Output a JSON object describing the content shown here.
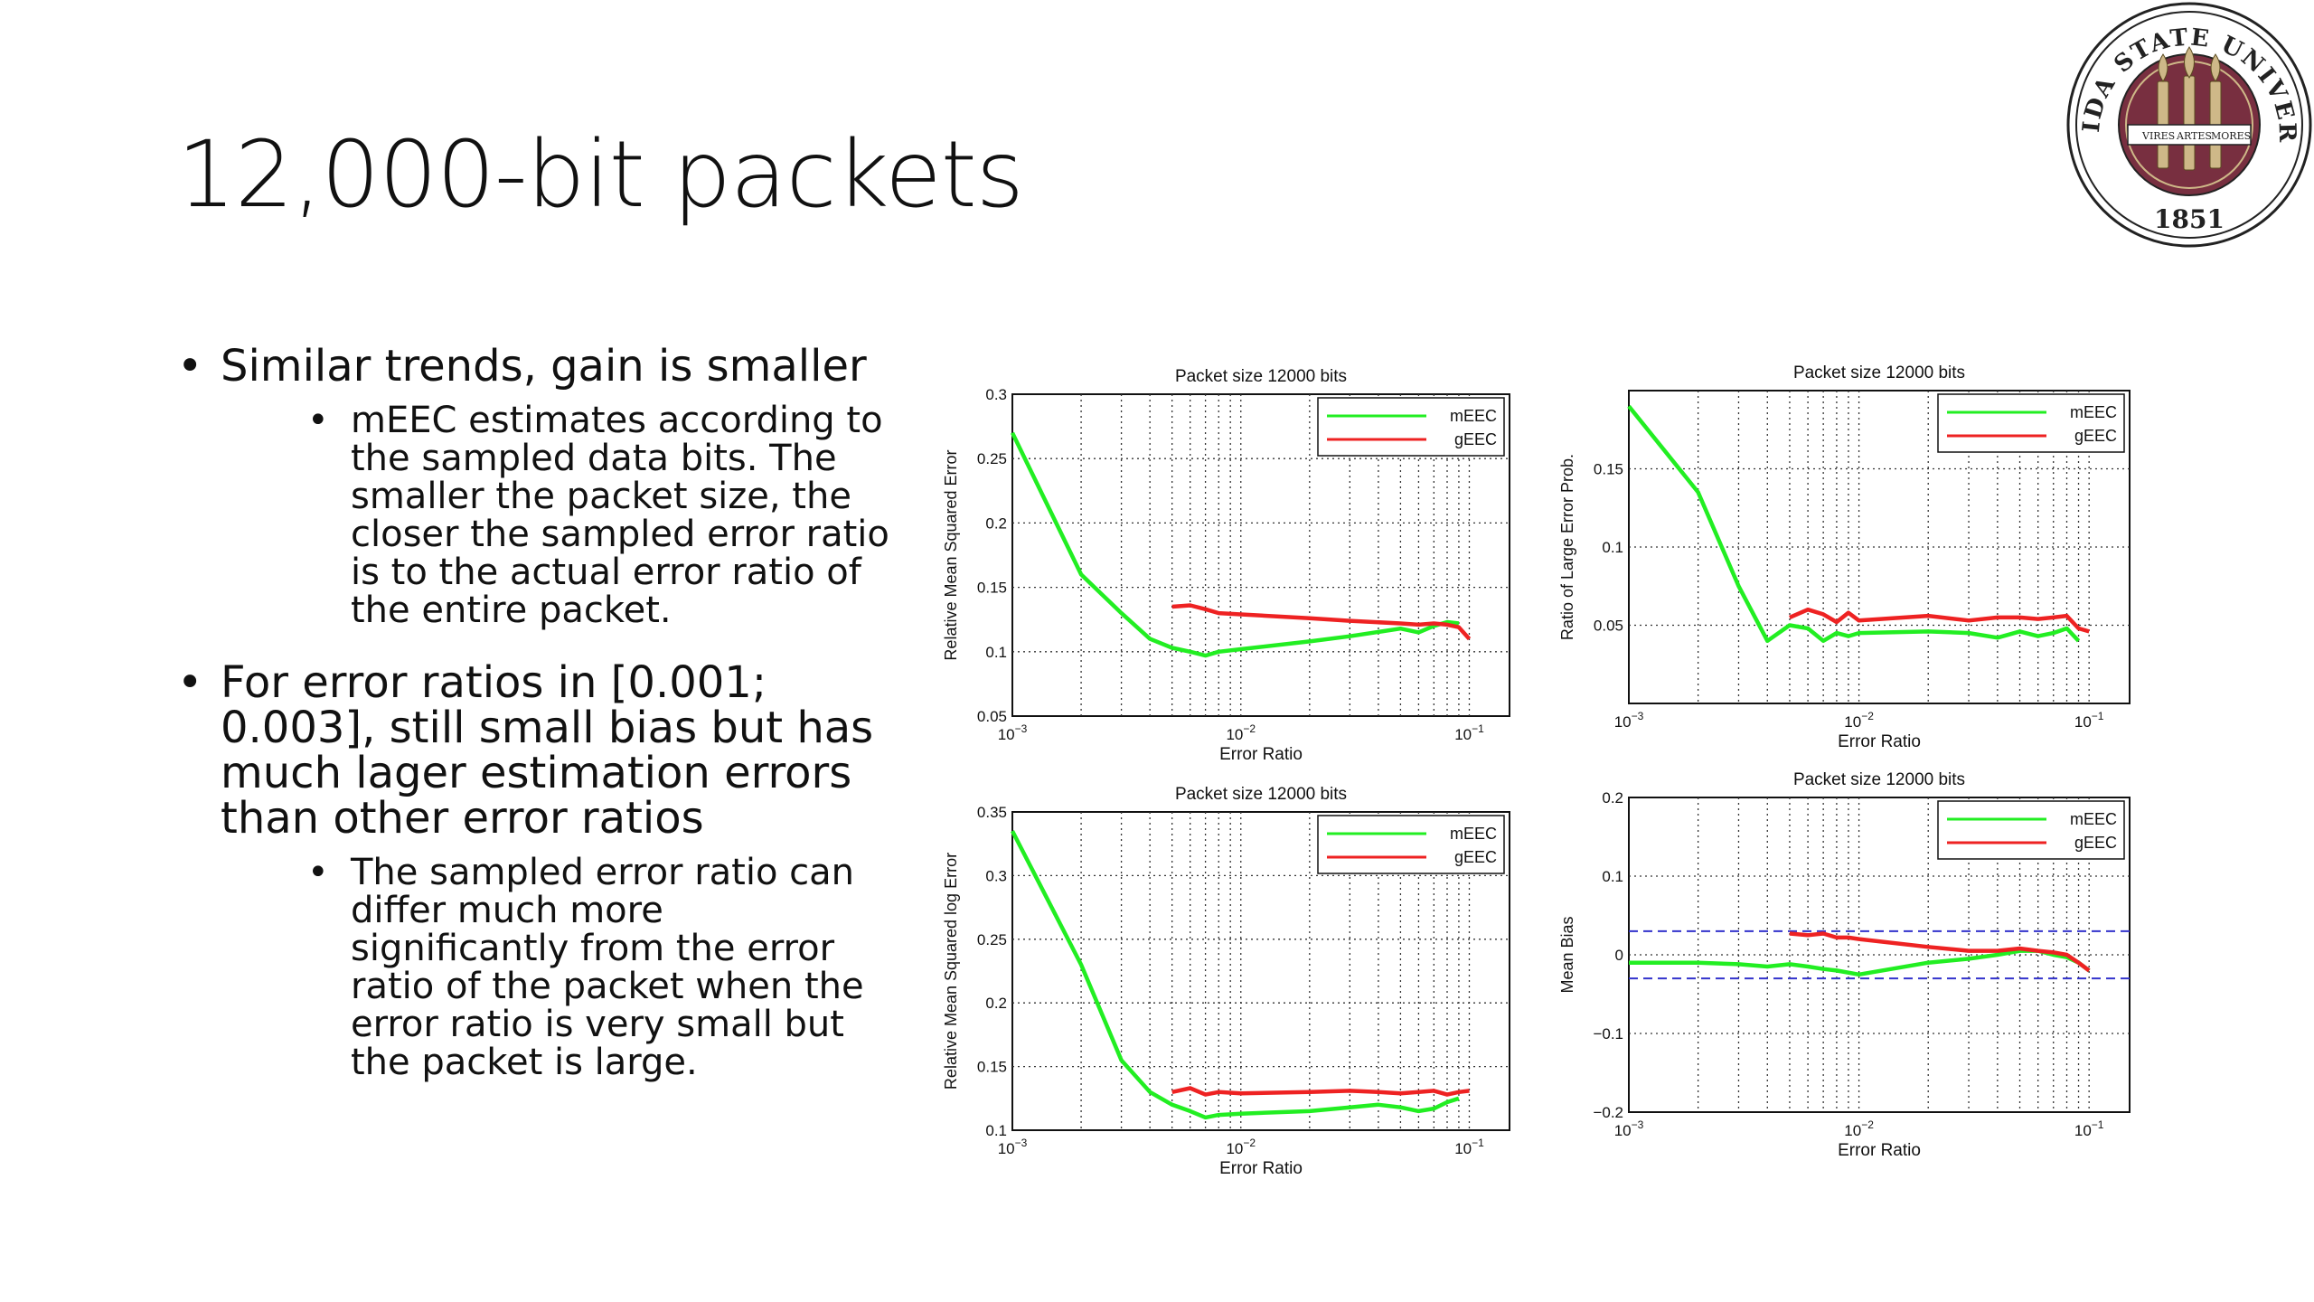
{
  "slide": {
    "title": "12,000-bit packets",
    "logo": {
      "text_top": "FLORIDA STATE UNIVERSITY",
      "year": "1851",
      "mottos": [
        "VIRES",
        "ARTES",
        "MORES"
      ],
      "colors": {
        "garnet": "#782F40",
        "gold": "#CEB888"
      }
    },
    "bullets": [
      {
        "text": "Similar trends, gain is smaller",
        "sub": [
          "mEEC estimates according to the sampled data bits. The smaller the packet size, the closer the sampled error ratio is to the actual error ratio of the entire packet."
        ]
      },
      {
        "text": "For error ratios in [0.001; 0.003], still small bias but has much lager estimation errors than other error ratios",
        "sub": [
          "The sampled error ratio can differ much more significantly from the error ratio of the packet when the error ratio is very small but the packet is large."
        ]
      }
    ]
  },
  "chart_data": [
    {
      "type": "line",
      "title": "Packet size 12000 bits",
      "xlabel": "Error Ratio",
      "ylabel": "Relative Mean Squared Error",
      "xscale": "log",
      "xlim": [
        0.001,
        0.15
      ],
      "ylim": [
        0.05,
        0.3
      ],
      "xticks": [
        "10^-3",
        "10^-2",
        "10^-1"
      ],
      "yticks": [
        "0.05",
        "0.1",
        "0.15",
        "0.2",
        "0.25",
        "0.3"
      ],
      "legend": "top-right",
      "grid": true,
      "series": [
        {
          "name": "mEEC",
          "color": "#22ee22",
          "x": [
            0.001,
            0.002,
            0.003,
            0.004,
            0.005,
            0.006,
            0.007,
            0.008,
            0.01,
            0.02,
            0.03,
            0.05,
            0.06,
            0.07,
            0.08,
            0.09
          ],
          "y": [
            0.27,
            0.16,
            0.13,
            0.11,
            0.103,
            0.1,
            0.097,
            0.1,
            0.102,
            0.108,
            0.112,
            0.118,
            0.115,
            0.12,
            0.123,
            0.122
          ]
        },
        {
          "name": "gEEC",
          "color": "#ee2222",
          "x": [
            0.005,
            0.006,
            0.007,
            0.008,
            0.01,
            0.02,
            0.03,
            0.05,
            0.06,
            0.07,
            0.08,
            0.09,
            0.1
          ],
          "y": [
            0.135,
            0.136,
            0.133,
            0.13,
            0.129,
            0.126,
            0.124,
            0.122,
            0.121,
            0.122,
            0.121,
            0.119,
            0.11
          ]
        }
      ]
    },
    {
      "type": "line",
      "title": "Packet size 12000 bits",
      "xlabel": "Error Ratio",
      "ylabel": "Ratio of Large Error Prob.",
      "xscale": "log",
      "xlim": [
        0.001,
        0.15
      ],
      "ylim": [
        0.0,
        0.2
      ],
      "xticks": [
        "10^-3",
        "10^-2",
        "10^-1"
      ],
      "yticks": [
        "0.05",
        "0.1",
        "0.15"
      ],
      "legend": "top-right",
      "grid": true,
      "series": [
        {
          "name": "mEEC",
          "color": "#22ee22",
          "x": [
            0.001,
            0.002,
            0.003,
            0.004,
            0.005,
            0.006,
            0.007,
            0.008,
            0.009,
            0.01,
            0.02,
            0.03,
            0.04,
            0.05,
            0.06,
            0.07,
            0.08,
            0.09
          ],
          "y": [
            0.19,
            0.135,
            0.075,
            0.04,
            0.05,
            0.048,
            0.04,
            0.045,
            0.043,
            0.045,
            0.046,
            0.045,
            0.042,
            0.046,
            0.043,
            0.045,
            0.048,
            0.04
          ]
        },
        {
          "name": "gEEC",
          "color": "#ee2222",
          "x": [
            0.005,
            0.006,
            0.007,
            0.008,
            0.009,
            0.01,
            0.02,
            0.03,
            0.04,
            0.05,
            0.06,
            0.07,
            0.08,
            0.09,
            0.1
          ],
          "y": [
            0.055,
            0.06,
            0.057,
            0.052,
            0.058,
            0.053,
            0.056,
            0.053,
            0.055,
            0.055,
            0.054,
            0.055,
            0.056,
            0.048,
            0.046
          ]
        }
      ]
    },
    {
      "type": "line",
      "title": "Packet size 12000 bits",
      "xlabel": "Error Ratio",
      "ylabel": "Relative Mean Squared log Error",
      "xscale": "log",
      "xlim": [
        0.001,
        0.15
      ],
      "ylim": [
        0.1,
        0.35
      ],
      "xticks": [
        "10^-3",
        "10^-2",
        "10^-1"
      ],
      "yticks": [
        "0.1",
        "0.15",
        "0.2",
        "0.25",
        "0.3",
        "0.35"
      ],
      "legend": "top-right",
      "grid": true,
      "series": [
        {
          "name": "mEEC",
          "color": "#22ee22",
          "x": [
            0.001,
            0.002,
            0.003,
            0.004,
            0.005,
            0.006,
            0.007,
            0.008,
            0.01,
            0.02,
            0.03,
            0.04,
            0.05,
            0.06,
            0.07,
            0.08,
            0.09
          ],
          "y": [
            0.335,
            0.23,
            0.155,
            0.13,
            0.12,
            0.115,
            0.11,
            0.112,
            0.113,
            0.115,
            0.118,
            0.12,
            0.118,
            0.115,
            0.117,
            0.122,
            0.125
          ]
        },
        {
          "name": "gEEC",
          "color": "#ee2222",
          "x": [
            0.005,
            0.006,
            0.007,
            0.008,
            0.01,
            0.02,
            0.03,
            0.04,
            0.05,
            0.06,
            0.07,
            0.08,
            0.09,
            0.1
          ],
          "y": [
            0.13,
            0.133,
            0.128,
            0.13,
            0.129,
            0.13,
            0.131,
            0.13,
            0.129,
            0.13,
            0.131,
            0.128,
            0.13,
            0.131
          ]
        }
      ]
    },
    {
      "type": "line",
      "title": "Packet size 12000 bits",
      "xlabel": "Error Ratio",
      "ylabel": "Mean Bias",
      "xscale": "log",
      "xlim": [
        0.001,
        0.15
      ],
      "ylim": [
        -0.2,
        0.2
      ],
      "xticks": [
        "10^-3",
        "10^-2",
        "10^-1"
      ],
      "yticks": [
        "-0.2",
        "-0.1",
        "0",
        "0.1",
        "0.2"
      ],
      "reference_lines": [
        0.03,
        -0.03
      ],
      "legend": "top-right",
      "grid": true,
      "series": [
        {
          "name": "mEEC",
          "color": "#22ee22",
          "x": [
            0.001,
            0.002,
            0.003,
            0.004,
            0.005,
            0.006,
            0.007,
            0.008,
            0.01,
            0.02,
            0.03,
            0.04,
            0.05,
            0.06,
            0.07,
            0.08,
            0.09,
            0.1
          ],
          "y": [
            -0.01,
            -0.01,
            -0.012,
            -0.015,
            -0.012,
            -0.015,
            -0.018,
            -0.02,
            -0.025,
            -0.01,
            -0.005,
            0.0,
            0.005,
            0.005,
            0.0,
            -0.003,
            -0.01,
            -0.02
          ]
        },
        {
          "name": "gEEC",
          "color": "#ee2222",
          "x": [
            0.005,
            0.006,
            0.007,
            0.008,
            0.009,
            0.01,
            0.02,
            0.03,
            0.04,
            0.05,
            0.06,
            0.07,
            0.08,
            0.09,
            0.1
          ],
          "y": [
            0.027,
            0.025,
            0.027,
            0.022,
            0.022,
            0.02,
            0.01,
            0.005,
            0.005,
            0.008,
            0.005,
            0.003,
            0.0,
            -0.01,
            -0.02
          ]
        }
      ]
    }
  ]
}
